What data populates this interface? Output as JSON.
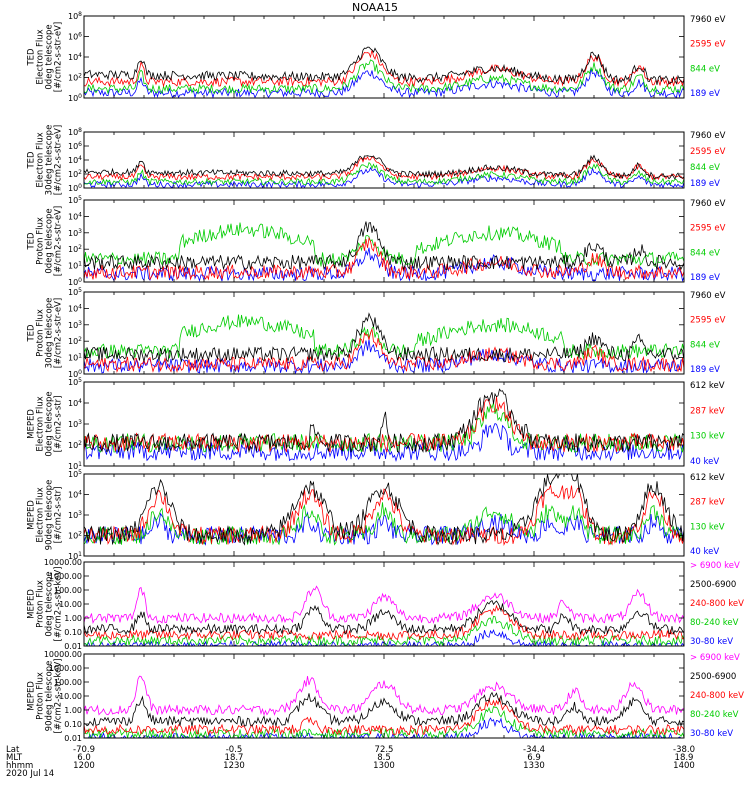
{
  "title": "NOAA15",
  "chart_data": [
    {
      "type": "line",
      "ylabel": [
        "TED",
        "Electron Flux",
        "0deg telescope",
        "[#/cm2-s-str-eV]"
      ],
      "yticks": [
        "10^0",
        "10^2",
        "10^4",
        "10^6",
        "10^8"
      ],
      "scale": "log",
      "ylim": [
        0,
        8
      ],
      "legend": [
        {
          "label": "7960 eV",
          "color": "#000000"
        },
        {
          "label": "2595 eV",
          "color": "#ff0000"
        },
        {
          "label": "844 eV",
          "color": "#00cc00"
        },
        {
          "label": "189 eV",
          "color": "#0000ff"
        }
      ]
    },
    {
      "type": "line",
      "ylabel": [
        "TED",
        "Electron Flux",
        "30deg telescope",
        "[#/cm2-s-str-eV]"
      ],
      "yticks": [
        "10^0",
        "10^2",
        "10^4",
        "10^6",
        "10^8"
      ],
      "scale": "log",
      "ylim": [
        0,
        8
      ],
      "legend": [
        {
          "label": "7960 eV",
          "color": "#000000"
        },
        {
          "label": "2595 eV",
          "color": "#ff0000"
        },
        {
          "label": "844 eV",
          "color": "#00cc00"
        },
        {
          "label": "189 eV",
          "color": "#0000ff"
        }
      ]
    },
    {
      "type": "line",
      "ylabel": [
        "TED",
        "Proton Flux",
        "0deg telescope",
        "[#/cm2-s-str-eV]"
      ],
      "yticks": [
        "10^0",
        "10^1",
        "10^2",
        "10^3",
        "10^4",
        "10^5"
      ],
      "scale": "log",
      "ylim": [
        0,
        5
      ],
      "legend": [
        {
          "label": "7960 eV",
          "color": "#000000"
        },
        {
          "label": "2595 eV",
          "color": "#ff0000"
        },
        {
          "label": "844 eV",
          "color": "#00cc00"
        },
        {
          "label": "189 eV",
          "color": "#0000ff"
        }
      ]
    },
    {
      "type": "line",
      "ylabel": [
        "TED",
        "Proton Flux",
        "30deg telescope",
        "[#/cm2-s-str-eV]"
      ],
      "yticks": [
        "10^0",
        "10^1",
        "10^2",
        "10^3",
        "10^4",
        "10^5"
      ],
      "scale": "log",
      "ylim": [
        0,
        5
      ],
      "legend": [
        {
          "label": "7960 eV",
          "color": "#000000"
        },
        {
          "label": "2595 eV",
          "color": "#ff0000"
        },
        {
          "label": "844 eV",
          "color": "#00cc00"
        },
        {
          "label": "189 eV",
          "color": "#0000ff"
        }
      ]
    },
    {
      "type": "line",
      "ylabel": [
        "MEPED",
        "Electron Flux",
        "0deg telescope",
        "[#/cm2-s-str]"
      ],
      "yticks": [
        "10^1",
        "10^2",
        "10^3",
        "10^4",
        "10^5"
      ],
      "scale": "log",
      "ylim": [
        1,
        5
      ],
      "legend": [
        {
          "label": "612 keV",
          "color": "#000000"
        },
        {
          "label": "287 keV",
          "color": "#ff0000"
        },
        {
          "label": "130 keV",
          "color": "#00cc00"
        },
        {
          "label": "40 keV",
          "color": "#0000ff"
        }
      ]
    },
    {
      "type": "line",
      "ylabel": [
        "MEPED",
        "Electron Flux",
        "90deg telescope",
        "[#/cm2-s-str]"
      ],
      "yticks": [
        "10^1",
        "10^2",
        "10^3",
        "10^4",
        "10^5"
      ],
      "scale": "log",
      "ylim": [
        1,
        5
      ],
      "legend": [
        {
          "label": "612 keV",
          "color": "#000000"
        },
        {
          "label": "287 keV",
          "color": "#ff0000"
        },
        {
          "label": "130 keV",
          "color": "#00cc00"
        },
        {
          "label": "40 keV",
          "color": "#0000ff"
        }
      ]
    },
    {
      "type": "line",
      "ylabel": [
        "MEPED",
        "Proton Flux",
        "0deg telescope",
        "[#/cm2-s-str-keV]"
      ],
      "yticks": [
        "0.01",
        "0.10",
        "1.00",
        "10.00",
        "100.00",
        "1000.00",
        "10000.00"
      ],
      "scale": "log",
      "ylim": [
        -2,
        4
      ],
      "legend": [
        {
          "label": "> 6900 keV",
          "color": "#ff00ff"
        },
        {
          "label": "2500-6900",
          "color": "#000000"
        },
        {
          "label": "240-800 keV",
          "color": "#ff0000"
        },
        {
          "label": "80-240 keV",
          "color": "#00cc00"
        },
        {
          "label": "30-80 keV",
          "color": "#0000ff"
        }
      ]
    },
    {
      "type": "line",
      "ylabel": [
        "MEPED",
        "Proton Flux",
        "90deg telescope",
        "[#/cm2-s-str-keV]"
      ],
      "yticks": [
        "0.01",
        "0.10",
        "1.00",
        "10.00",
        "100.00",
        "1000.00",
        "10000.00"
      ],
      "scale": "log",
      "ylim": [
        -2,
        4
      ],
      "legend": [
        {
          "label": "> 6900 keV",
          "color": "#ff00ff"
        },
        {
          "label": "2500-6900",
          "color": "#000000"
        },
        {
          "label": "240-800 keV",
          "color": "#ff0000"
        },
        {
          "label": "80-240 keV",
          "color": "#00cc00"
        },
        {
          "label": "30-80 keV",
          "color": "#0000ff"
        }
      ]
    }
  ],
  "footer": {
    "row_labels": [
      "Lat",
      "MLT",
      "hhmm",
      "2020 Jul 14"
    ],
    "columns": [
      {
        "lat": "-70.9",
        "mlt": "6.0",
        "hhmm": "1200"
      },
      {
        "lat": "-0.5",
        "mlt": "18.7",
        "hhmm": "1230"
      },
      {
        "lat": "72.5",
        "mlt": "8.5",
        "hhmm": "1300"
      },
      {
        "lat": "-34.4",
        "mlt": "6.9",
        "hhmm": "1330"
      },
      {
        "lat": "-38.0",
        "mlt": "18.9",
        "hhmm": "1400"
      }
    ]
  }
}
